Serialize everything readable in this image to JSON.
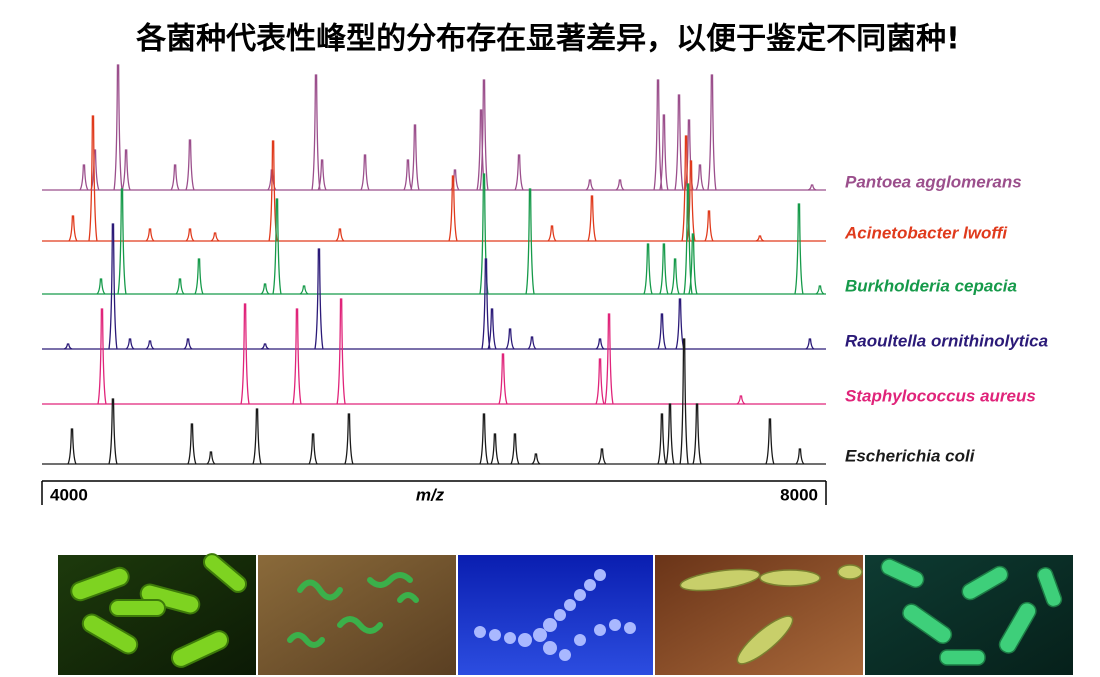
{
  "chart_data": {
    "type": "spectrum",
    "title": "各菌种代表性峰型的分布存在显著差异，以便于鉴定不同菌种!",
    "xlabel": "m/z",
    "xlim": [
      4000,
      8000
    ],
    "xticks": [
      4000,
      8000
    ],
    "series": [
      {
        "name": "Pantoea agglomerans",
        "color": "#9b4f8c",
        "x": [
          4214,
          4270,
          4388,
          4429,
          4679,
          4755,
          5173,
          5398,
          5429,
          5648,
          5867,
          5903,
          6107,
          6240,
          6255,
          6434,
          6796,
          6949,
          7143,
          7173,
          7250,
          7301,
          7357,
          7418,
          7929
        ],
        "values": [
          25,
          40,
          125,
          40,
          25,
          50,
          20,
          115,
          30,
          35,
          30,
          65,
          20,
          80,
          110,
          35,
          10,
          10,
          110,
          75,
          95,
          70,
          25,
          115,
          5
        ]
      },
      {
        "name": "Acinetobacter lwoffi",
        "color": "#e03a1c",
        "x": [
          4158,
          4260,
          4551,
          4755,
          4883,
          5179,
          5520,
          6097,
          6602,
          6806,
          7286,
          7311,
          7403,
          7663
        ],
        "values": [
          25,
          125,
          12,
          12,
          8,
          100,
          12,
          65,
          15,
          45,
          105,
          80,
          30,
          5
        ]
      },
      {
        "name": "Burkholderia cepacia",
        "color": "#169a4a",
        "x": [
          4301,
          4408,
          4704,
          4801,
          5138,
          5199,
          5337,
          6255,
          6490,
          7092,
          7173,
          7230,
          7296,
          7321,
          7862,
          7969
        ],
        "values": [
          15,
          105,
          15,
          35,
          10,
          95,
          8,
          120,
          105,
          50,
          50,
          35,
          110,
          60,
          90,
          8
        ]
      },
      {
        "name": "Raoultella ornithinolytica",
        "color": "#2b1a78",
        "x": [
          4133,
          4362,
          4449,
          4551,
          4745,
          5138,
          5413,
          6265,
          6296,
          6388,
          6500,
          6847,
          7163,
          7255,
          7918
        ],
        "values": [
          5,
          125,
          10,
          8,
          10,
          5,
          100,
          90,
          40,
          20,
          12,
          10,
          35,
          50,
          10
        ]
      },
      {
        "name": "Staphylococcus aureus",
        "color": "#e0247a",
        "x": [
          4306,
          5036,
          5301,
          5526,
          6352,
          6847,
          6893,
          7566
        ],
        "values": [
          95,
          100,
          95,
          105,
          50,
          45,
          90,
          8
        ]
      },
      {
        "name": "Escherichia coli",
        "color": "#1a1a1a",
        "x": [
          4153,
          4362,
          4765,
          4862,
          5097,
          5383,
          5566,
          6255,
          6311,
          6413,
          6520,
          6857,
          7163,
          7204,
          7276,
          7342,
          7714,
          7867
        ],
        "values": [
          35,
          65,
          40,
          12,
          55,
          30,
          50,
          50,
          30,
          30,
          10,
          15,
          50,
          60,
          125,
          60,
          45,
          15
        ]
      }
    ]
  }
}
